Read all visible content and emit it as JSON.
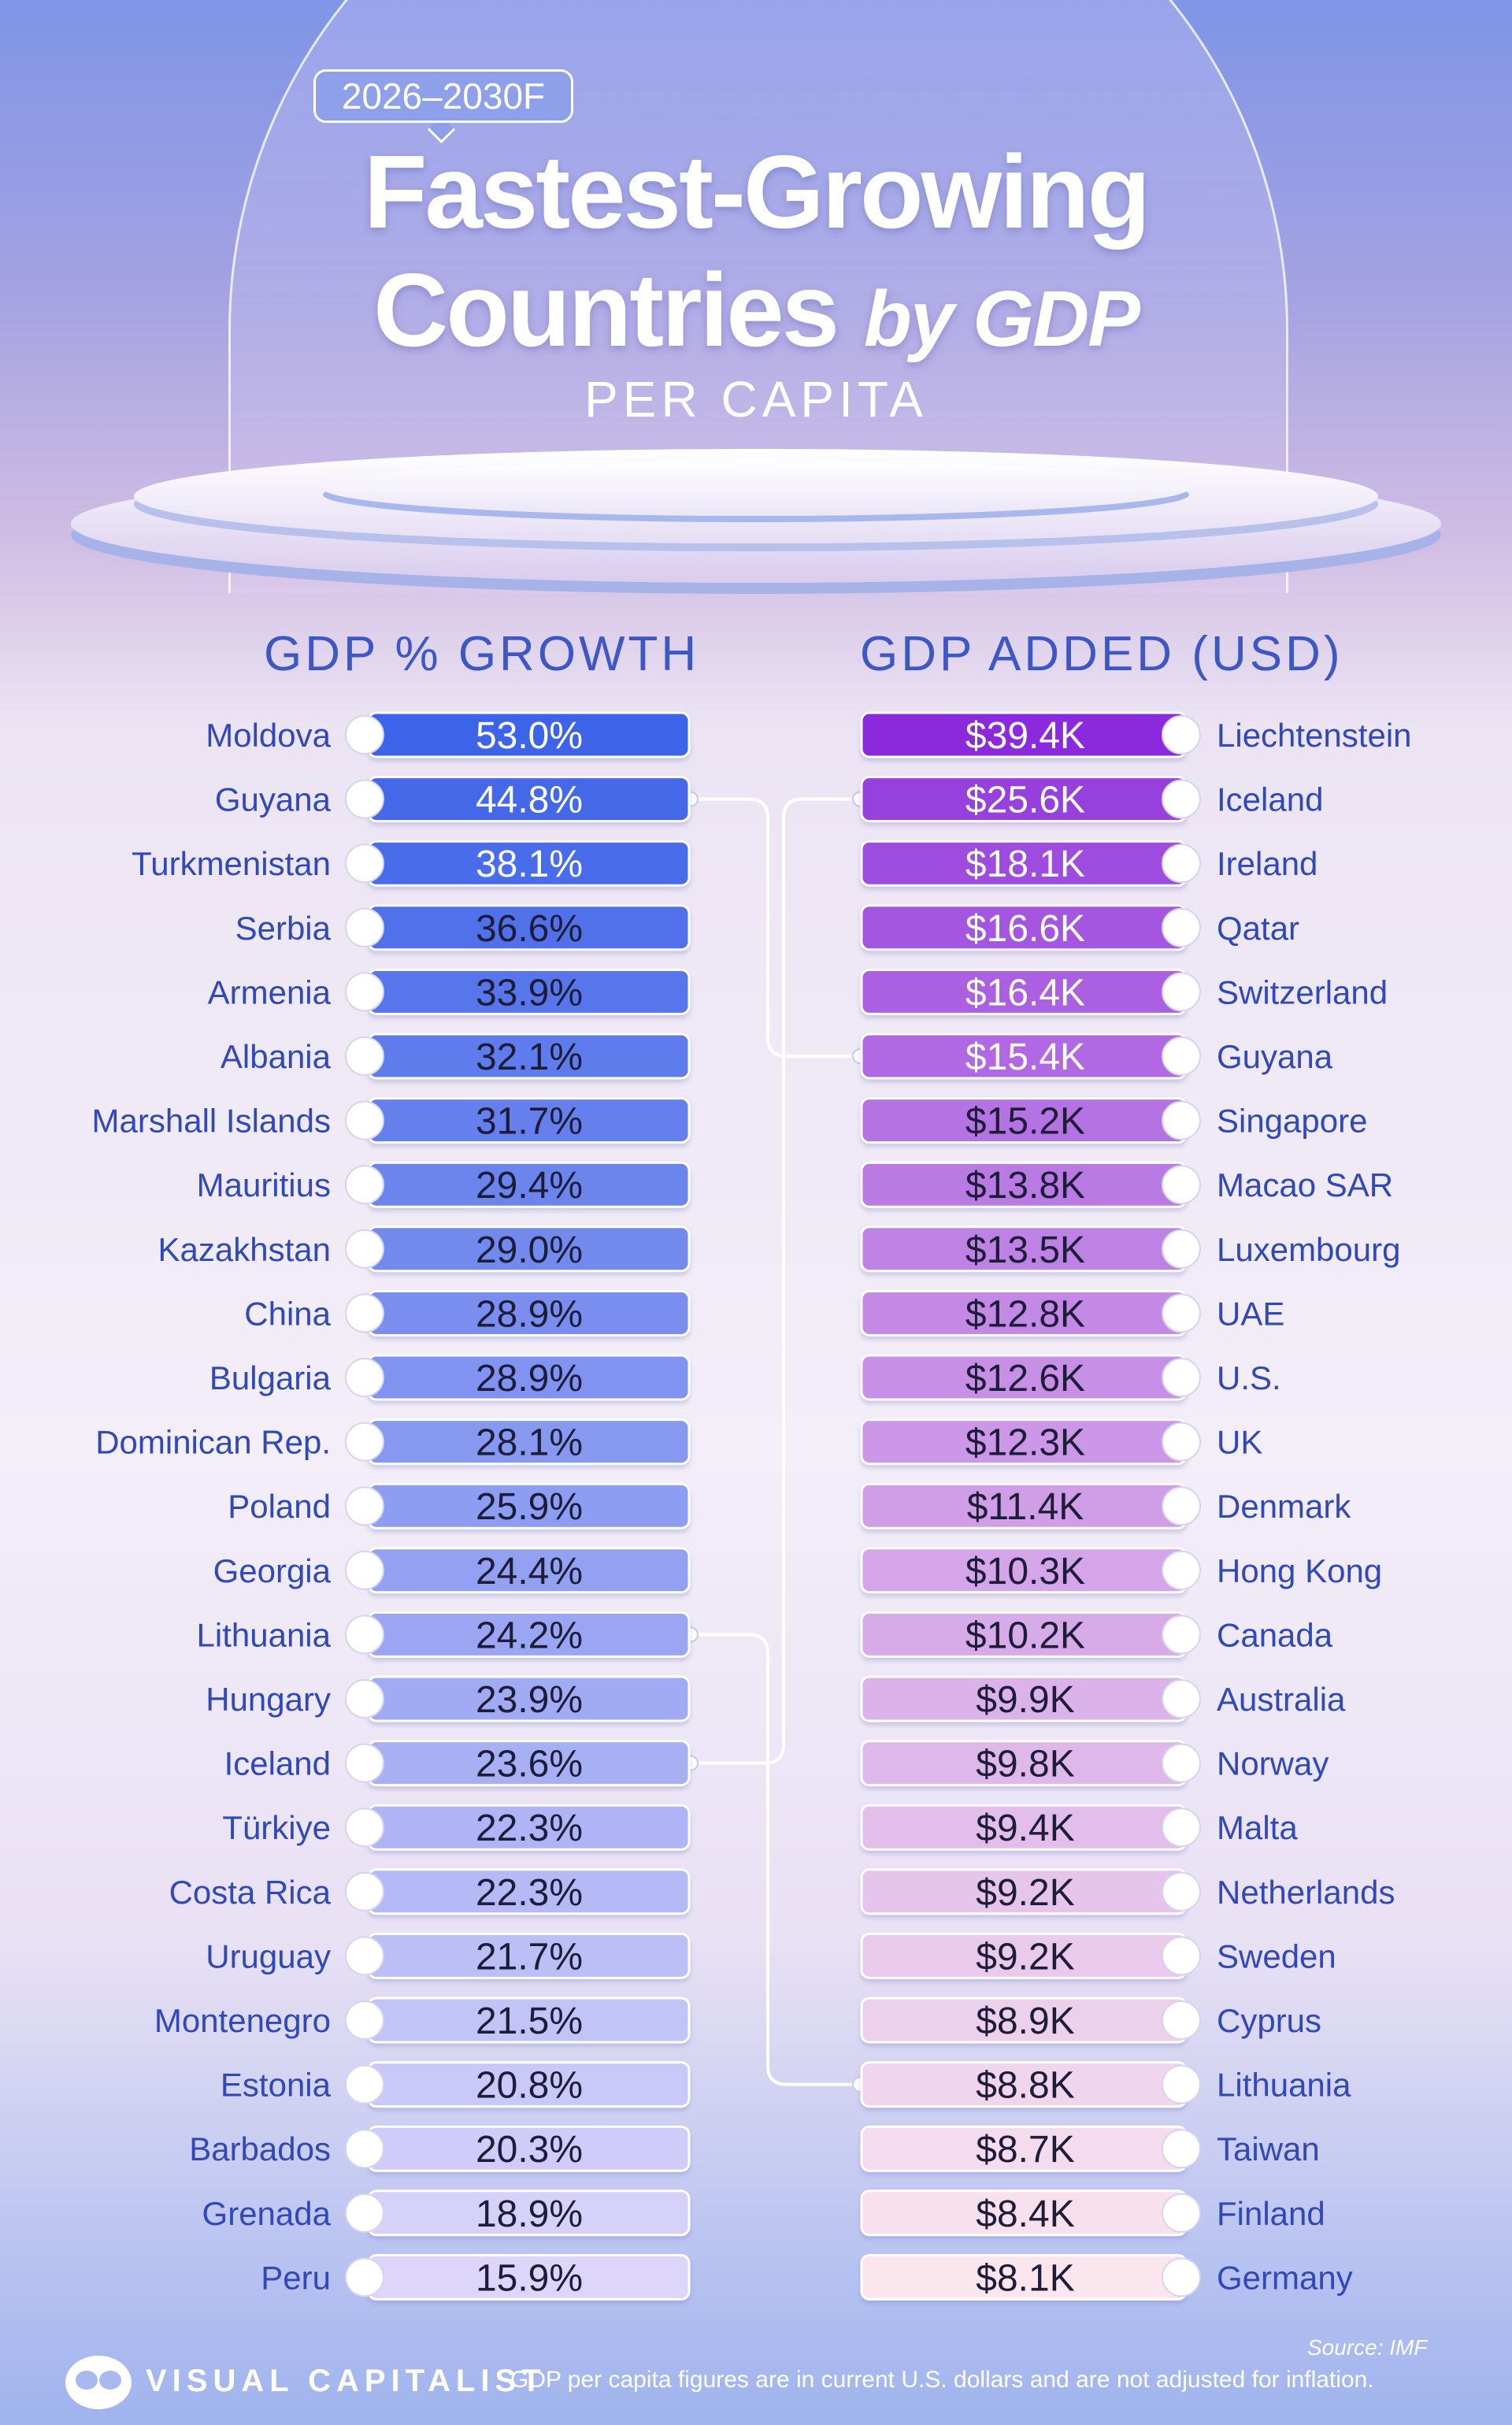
{
  "header": {
    "period": "2026–2030F",
    "title_line1": "Fastest-Growing",
    "title_line2_main": "Countries",
    "title_line2_by": "by GDP",
    "subtitle": "PER CAPITA"
  },
  "chart_data": [
    {
      "type": "bar",
      "title": "GDP % GROWTH",
      "unit": "%",
      "categories": [
        "Moldova",
        "Guyana",
        "Turkmenistan",
        "Serbia",
        "Armenia",
        "Albania",
        "Marshall Islands",
        "Mauritius",
        "Kazakhstan",
        "China",
        "Bulgaria",
        "Dominican Rep.",
        "Poland",
        "Georgia",
        "Lithuania",
        "Hungary",
        "Iceland",
        "Türkiye",
        "Costa Rica",
        "Uruguay",
        "Montenegro",
        "Estonia",
        "Barbados",
        "Grenada",
        "Peru"
      ],
      "values": [
        53.0,
        44.8,
        38.1,
        36.6,
        33.9,
        32.1,
        31.7,
        29.4,
        29.0,
        28.9,
        28.9,
        28.1,
        25.9,
        24.4,
        24.2,
        23.9,
        23.6,
        22.3,
        22.3,
        21.7,
        21.5,
        20.8,
        20.3,
        18.9,
        15.9
      ],
      "labels": [
        "53.0%",
        "44.8%",
        "38.1%",
        "36.6%",
        "33.9%",
        "32.1%",
        "31.7%",
        "29.4%",
        "29.0%",
        "28.9%",
        "28.9%",
        "28.1%",
        "25.9%",
        "24.4%",
        "24.2%",
        "23.9%",
        "23.6%",
        "22.3%",
        "22.3%",
        "21.7%",
        "21.5%",
        "20.8%",
        "20.3%",
        "18.9%",
        "15.9%"
      ]
    },
    {
      "type": "bar",
      "title": "GDP ADDED (USD)",
      "unit": "USD",
      "categories": [
        "Liechtenstein",
        "Iceland",
        "Ireland",
        "Qatar",
        "Switzerland",
        "Guyana",
        "Singapore",
        "Macao SAR",
        "Luxembourg",
        "UAE",
        "U.S.",
        "UK",
        "Denmark",
        "Hong Kong",
        "Canada",
        "Australia",
        "Norway",
        "Malta",
        "Netherlands",
        "Sweden",
        "Cyprus",
        "Lithuania",
        "Taiwan",
        "Finland",
        "Germany"
      ],
      "values": [
        39400,
        25600,
        18100,
        16600,
        16400,
        15400,
        15200,
        13800,
        13500,
        12800,
        12600,
        12300,
        11400,
        10300,
        10200,
        9900,
        9800,
        9400,
        9200,
        9200,
        8900,
        8800,
        8700,
        8400,
        8100
      ],
      "labels": [
        "$39.4K",
        "$25.6K",
        "$18.1K",
        "$16.6K",
        "$16.4K",
        "$15.4K",
        "$15.2K",
        "$13.8K",
        "$13.5K",
        "$12.8K",
        "$12.6K",
        "$12.3K",
        "$11.4K",
        "$10.3K",
        "$10.2K",
        "$9.9K",
        "$9.8K",
        "$9.4K",
        "$9.2K",
        "$9.2K",
        "$8.9K",
        "$8.8K",
        "$8.7K",
        "$8.4K",
        "$8.1K"
      ]
    }
  ],
  "connections": [
    {
      "country": "Guyana",
      "left_rank": 2,
      "right_rank": 6
    },
    {
      "country": "Iceland",
      "left_rank": 17,
      "right_rank": 2
    },
    {
      "country": "Lithuania",
      "left_rank": 15,
      "right_rank": 22
    }
  ],
  "colors": {
    "left_top": "#3d63e8",
    "left_bottom": "#ddd6fa",
    "right_top": "#8a2bdc",
    "right_bottom": "#fbe6ee",
    "text_blue": "#3148b8"
  },
  "footer": {
    "brand": "VISUAL CAPITALIST",
    "note": "GDP per capita figures are in current U.S. dollars and are not adjusted for inflation.",
    "source": "Source: IMF"
  }
}
